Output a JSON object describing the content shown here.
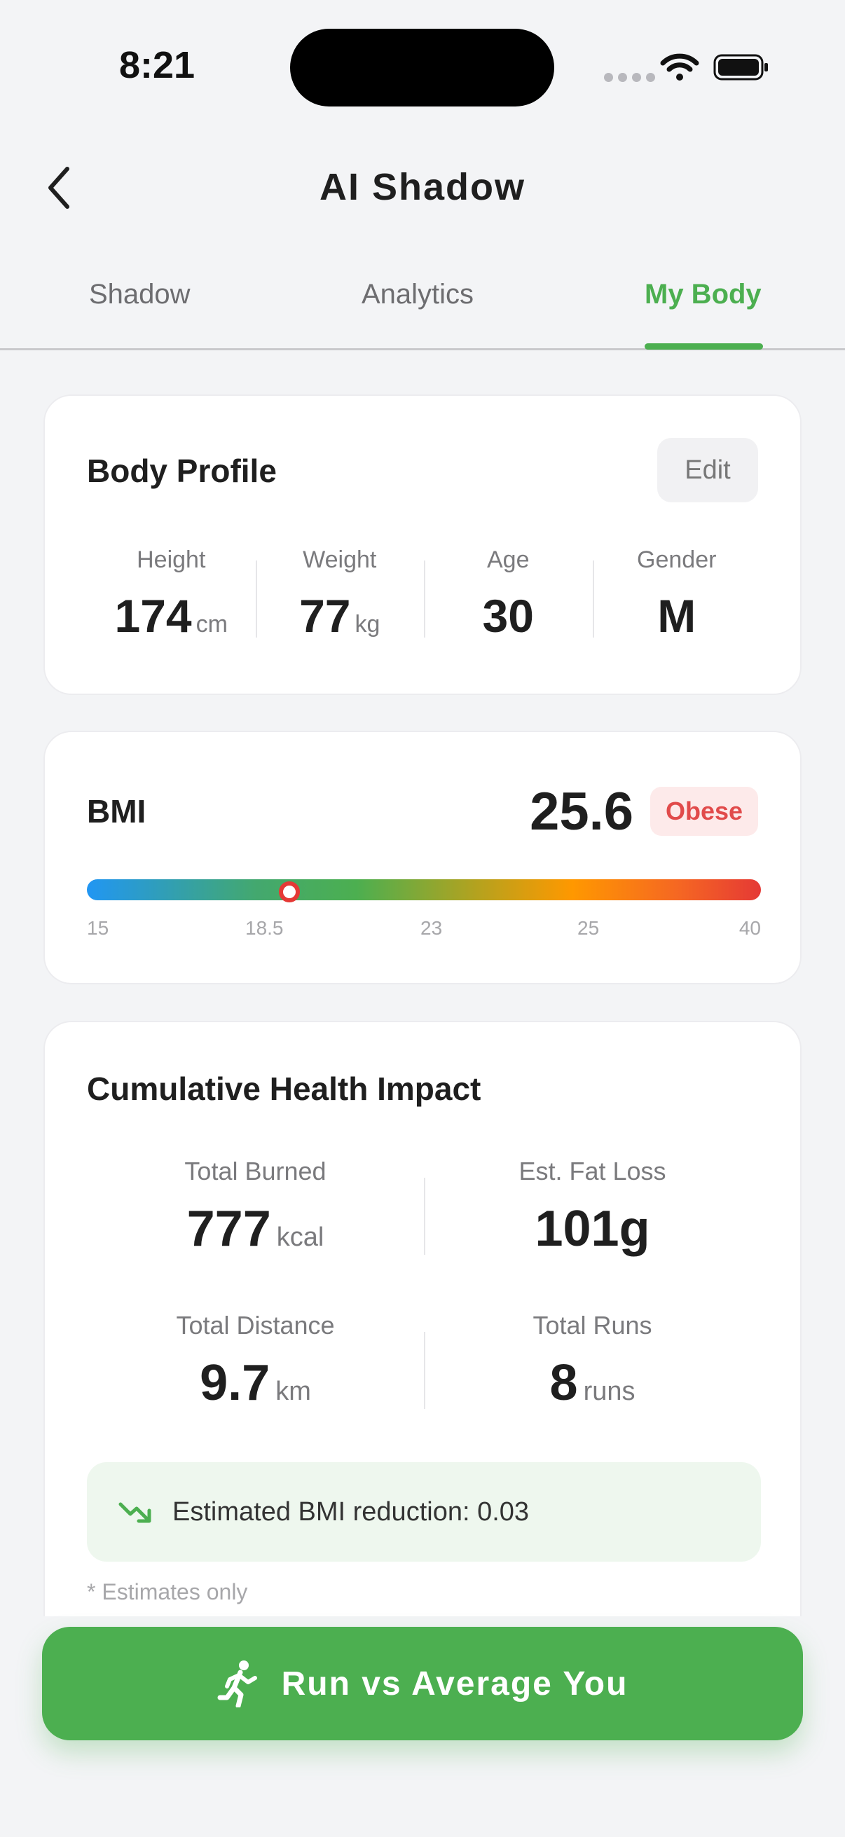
{
  "status_bar": {
    "time": "8:21"
  },
  "header": {
    "title": "AI Shadow",
    "back_icon": "chevron-left-icon"
  },
  "tabs": [
    {
      "label": "Shadow",
      "active": false
    },
    {
      "label": "Analytics",
      "active": false
    },
    {
      "label": "My Body",
      "active": true
    }
  ],
  "body_profile": {
    "title": "Body Profile",
    "edit_label": "Edit",
    "stats": [
      {
        "label": "Height",
        "value": "174",
        "unit": "cm"
      },
      {
        "label": "Weight",
        "value": "77",
        "unit": "kg"
      },
      {
        "label": "Age",
        "value": "30",
        "unit": ""
      },
      {
        "label": "Gender",
        "value": "M",
        "unit": ""
      }
    ]
  },
  "bmi": {
    "title": "BMI",
    "value": "25.6",
    "status": "Obese",
    "status_color": "#e14b4b",
    "ticks": [
      "15",
      "18.5",
      "23",
      "25",
      "40"
    ]
  },
  "cumulative": {
    "title": "Cumulative Health Impact",
    "items": [
      {
        "label": "Total Burned",
        "value": "777",
        "unit": "kcal"
      },
      {
        "label": "Est. Fat Loss",
        "value": "101g",
        "unit": ""
      },
      {
        "label": "Total Distance",
        "value": "9.7",
        "unit": "km"
      },
      {
        "label": "Total Runs",
        "value": "8",
        "unit": "runs"
      }
    ],
    "bmi_reduction": "Estimated BMI reduction: 0.03",
    "note": "* Estimates only"
  },
  "cta": {
    "label": "Run vs Average You",
    "icon": "running-person-icon"
  },
  "colors": {
    "accent": "#4caf50",
    "danger": "#e53935",
    "background": "#f3f4f6"
  }
}
